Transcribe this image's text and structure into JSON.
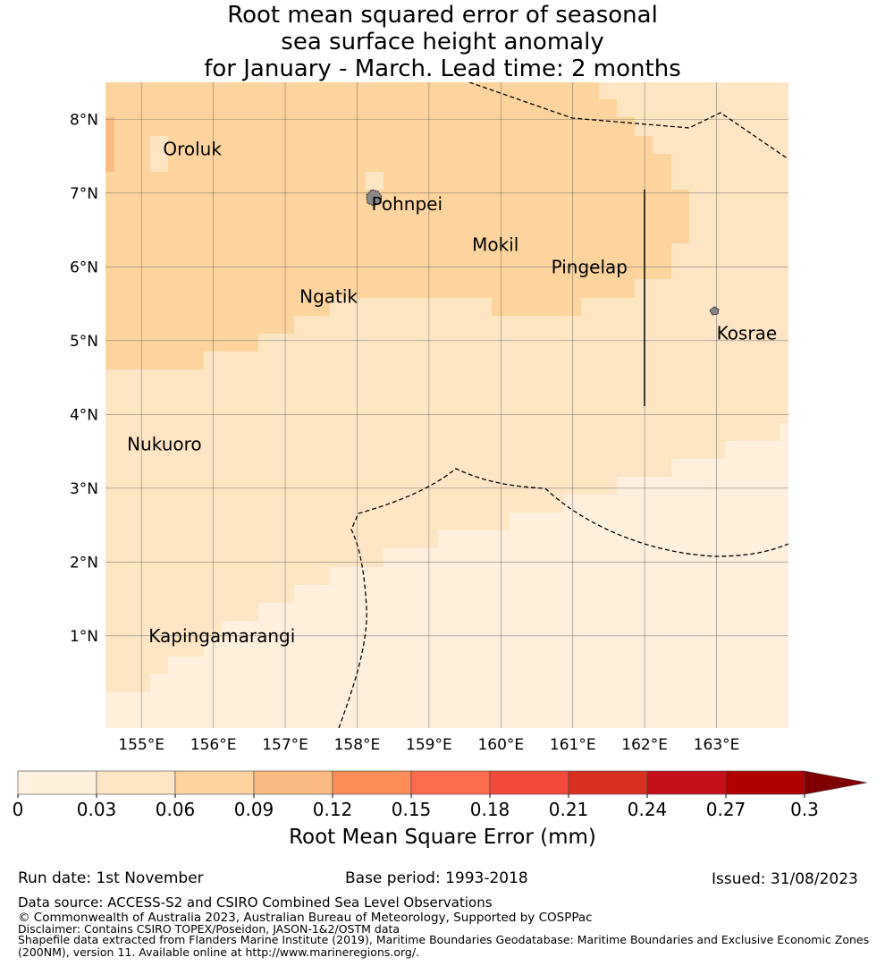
{
  "title": {
    "line1": "Root mean squared error of seasonal",
    "line2": "sea surface height anomaly",
    "line3": "for January - March. Lead time: 2 months"
  },
  "map": {
    "lat_labels": [
      "8°N",
      "7°N",
      "6°N",
      "5°N",
      "4°N",
      "3°N",
      "2°N",
      "1°N"
    ],
    "lon_labels": [
      "155°E",
      "156°E",
      "157°E",
      "158°E",
      "159°E",
      "160°E",
      "161°E",
      "162°E",
      "163°E"
    ],
    "lon_range": [
      154.5,
      164.0
    ],
    "lat_range": [
      -0.25,
      8.5
    ],
    "places": [
      {
        "name": "Oroluk",
        "lon": 155.3,
        "lat": 7.6
      },
      {
        "name": "Pohnpei",
        "lon": 158.2,
        "lat": 6.85
      },
      {
        "name": "Mokil",
        "lon": 159.6,
        "lat": 6.3
      },
      {
        "name": "Pingelap",
        "lon": 160.7,
        "lat": 6.0
      },
      {
        "name": "Ngatik",
        "lon": 157.2,
        "lat": 5.6
      },
      {
        "name": "Kosrae",
        "lon": 163.0,
        "lat": 5.1
      },
      {
        "name": "Nukuoro",
        "lon": 154.8,
        "lat": 3.6
      },
      {
        "name": "Kapingamarangi",
        "lon": 155.1,
        "lat": 1.0
      }
    ],
    "colors": {
      "band1": "#fef0dd",
      "band2": "#fee6c4",
      "band3": "#fdd49e"
    }
  },
  "colorbar": {
    "tick_labels": [
      "0",
      "0.03",
      "0.06",
      "0.09",
      "0.12",
      "0.15",
      "0.18",
      "0.21",
      "0.24",
      "0.27",
      "0.3"
    ],
    "colors": [
      "#fff3e0",
      "#fee6c4",
      "#fdd49e",
      "#fdbb84",
      "#fc8d59",
      "#fd6b4d",
      "#ef4a3a",
      "#d7301f",
      "#c4101a",
      "#b00000"
    ],
    "extend_color": "#7f0000",
    "label": "Root Mean Square Error (mm)"
  },
  "footer": {
    "run_date": "Run date: 1st November",
    "base_period": "Base period: 1993-2018",
    "issued": "Issued: 31/08/2023",
    "data_source": "Data source: ACCESS-S2 and CSIRO Combined Sea Level Observations",
    "copyright": "© Commonwealth of Australia 2023, Australian Bureau of Meteorology, Supported by COSPPac",
    "disclaimer": "Disclaimer: Contains CSIRO TOPEX/Poseidon, JASON-1&2/OSTM data",
    "shapefile1": "Shapefile data extracted from Flanders Marine Institute (2019), Maritime Boundaries Geodatabase: Maritime Boundaries and Exclusive Economic Zones",
    "shapefile2": "(200NM), version 11. Available online at http://www.marineregions.org/."
  }
}
